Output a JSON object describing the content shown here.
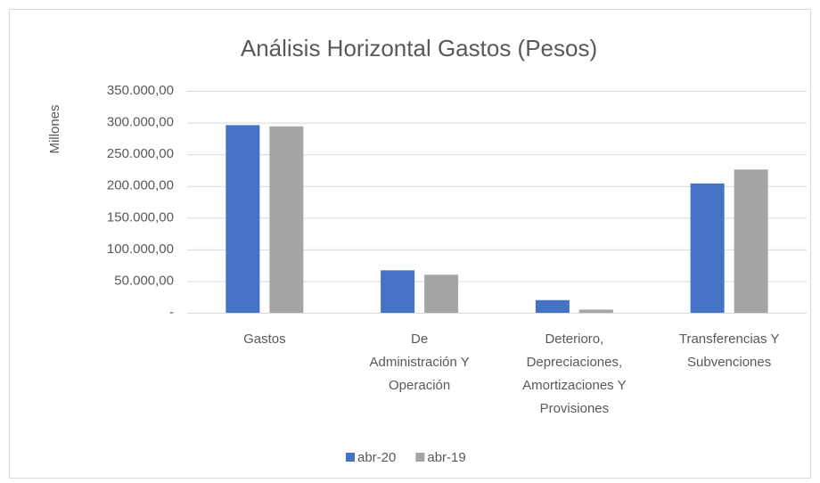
{
  "chart_data": {
    "type": "bar",
    "title": "Análisis Horizontal Gastos (Pesos)",
    "y_label": "Millones",
    "categories": [
      [
        "Gastos"
      ],
      [
        "De",
        "Administración Y",
        "Operación"
      ],
      [
        "Deterioro,",
        "Depreciaciones,",
        "Amortizaciones Y",
        "Provisiones"
      ],
      [
        "Transferencias Y",
        "Subvenciones"
      ]
    ],
    "series": [
      {
        "name": "abr-20",
        "color": "#4472c4",
        "values": [
          296000,
          67000,
          20000,
          204000
        ]
      },
      {
        "name": "abr-19",
        "color": "#a5a5a5",
        "values": [
          294000,
          60000,
          5000,
          226000
        ]
      }
    ],
    "ylim": [
      0,
      350000
    ],
    "yticks": [
      {
        "value": 0,
        "label": "-"
      },
      {
        "value": 50000,
        "label": "50.000,00"
      },
      {
        "value": 100000,
        "label": "100.000,00"
      },
      {
        "value": 150000,
        "label": "150.000,00"
      },
      {
        "value": 200000,
        "label": "200.000,00"
      },
      {
        "value": 250000,
        "label": "250.000,00"
      },
      {
        "value": 300000,
        "label": "300.000,00"
      },
      {
        "value": 350000,
        "label": "350.000,00"
      }
    ],
    "grid": true,
    "legend": "bottom"
  }
}
